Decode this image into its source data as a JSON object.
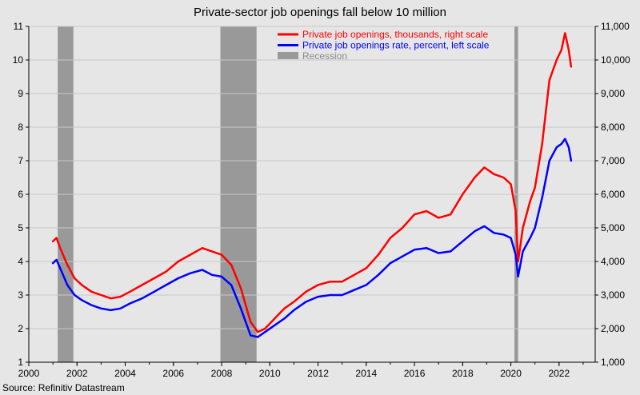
{
  "chart_data": {
    "type": "line",
    "title": "Private-sector job openings fall below 10 million",
    "source": "Source: Refinitiv Datastream",
    "x_ticks": [
      "2000",
      "2002",
      "2004",
      "2006",
      "2008",
      "2010",
      "2012",
      "2014",
      "2016",
      "2018",
      "2020",
      "2022"
    ],
    "xlim": [
      2000,
      2023.5
    ],
    "left_axis": {
      "ylim": [
        1,
        11
      ],
      "ticks": [
        "1",
        "2",
        "3",
        "4",
        "5",
        "6",
        "7",
        "8",
        "9",
        "10",
        "11"
      ]
    },
    "right_axis": {
      "ylim": [
        1000,
        11000
      ],
      "ticks": [
        "1,000",
        "2,000",
        "3,000",
        "4,000",
        "5,000",
        "6,000",
        "7,000",
        "8,000",
        "9,000",
        "10,000",
        "11,000"
      ]
    },
    "grid": true,
    "legend": {
      "placement": "top-right",
      "entries": [
        {
          "label": "Private job openings, thousands, right scale",
          "color": "#ff0000",
          "kind": "line"
        },
        {
          "label": "Private job openings rate, percent, left scale",
          "color": "#0000ff",
          "kind": "line"
        },
        {
          "label": "Recession",
          "color": "#999999",
          "kind": "box"
        }
      ]
    },
    "recessions": [
      {
        "start": 2001.2,
        "end": 2001.85
      },
      {
        "start": 2007.95,
        "end": 2009.45
      },
      {
        "start": 2020.15,
        "end": 2020.3
      }
    ],
    "series": [
      {
        "name": "Private job openings, thousands, right scale",
        "color": "#ff0000",
        "axis": "right",
        "x": [
          2001.0,
          2001.15,
          2001.3,
          2001.6,
          2001.9,
          2002.2,
          2002.6,
          2003.0,
          2003.4,
          2003.8,
          2004.2,
          2004.7,
          2005.2,
          2005.7,
          2006.2,
          2006.7,
          2007.2,
          2007.6,
          2008.0,
          2008.4,
          2008.8,
          2009.2,
          2009.5,
          2009.8,
          2010.2,
          2010.6,
          2011.0,
          2011.5,
          2012.0,
          2012.5,
          2013.0,
          2013.5,
          2014.0,
          2014.5,
          2015.0,
          2015.5,
          2016.0,
          2016.5,
          2017.0,
          2017.5,
          2018.0,
          2018.5,
          2018.9,
          2019.3,
          2019.7,
          2020.0,
          2020.2,
          2020.3,
          2020.5,
          2020.8,
          2021.0,
          2021.3,
          2021.6,
          2021.9,
          2022.1,
          2022.25,
          2022.4,
          2022.5
        ],
        "values": [
          4600,
          4700,
          4400,
          3900,
          3500,
          3300,
          3100,
          3000,
          2900,
          2950,
          3100,
          3300,
          3500,
          3700,
          4000,
          4200,
          4400,
          4300,
          4200,
          3900,
          3200,
          2200,
          1900,
          2000,
          2300,
          2600,
          2800,
          3100,
          3300,
          3400,
          3400,
          3600,
          3800,
          4200,
          4700,
          5000,
          5400,
          5500,
          5300,
          5400,
          6000,
          6500,
          6800,
          6600,
          6500,
          6300,
          5500,
          4000,
          5000,
          5800,
          6200,
          7500,
          9400,
          10000,
          10300,
          10800,
          10300,
          9800
        ]
      },
      {
        "name": "Private job openings rate, percent, left scale",
        "color": "#0000ff",
        "axis": "left",
        "x": [
          2001.0,
          2001.15,
          2001.3,
          2001.6,
          2001.9,
          2002.2,
          2002.6,
          2003.0,
          2003.4,
          2003.8,
          2004.2,
          2004.7,
          2005.2,
          2005.7,
          2006.2,
          2006.7,
          2007.2,
          2007.6,
          2008.0,
          2008.4,
          2008.8,
          2009.2,
          2009.5,
          2009.8,
          2010.2,
          2010.6,
          2011.0,
          2011.5,
          2012.0,
          2012.5,
          2013.0,
          2013.5,
          2014.0,
          2014.5,
          2015.0,
          2015.5,
          2016.0,
          2016.5,
          2017.0,
          2017.5,
          2018.0,
          2018.5,
          2018.9,
          2019.3,
          2019.7,
          2020.0,
          2020.2,
          2020.3,
          2020.5,
          2020.8,
          2021.0,
          2021.3,
          2021.6,
          2021.9,
          2022.1,
          2022.25,
          2022.4,
          2022.5
        ],
        "values": [
          3.95,
          4.05,
          3.8,
          3.3,
          3.0,
          2.85,
          2.7,
          2.6,
          2.55,
          2.6,
          2.75,
          2.9,
          3.1,
          3.3,
          3.5,
          3.65,
          3.75,
          3.6,
          3.55,
          3.3,
          2.6,
          1.8,
          1.75,
          1.9,
          2.1,
          2.3,
          2.55,
          2.8,
          2.95,
          3.0,
          3.0,
          3.15,
          3.3,
          3.6,
          3.95,
          4.15,
          4.35,
          4.4,
          4.25,
          4.3,
          4.6,
          4.9,
          5.05,
          4.85,
          4.8,
          4.7,
          4.2,
          3.55,
          4.3,
          4.7,
          5.0,
          5.9,
          7.0,
          7.4,
          7.5,
          7.65,
          7.4,
          7.0
        ]
      }
    ]
  }
}
